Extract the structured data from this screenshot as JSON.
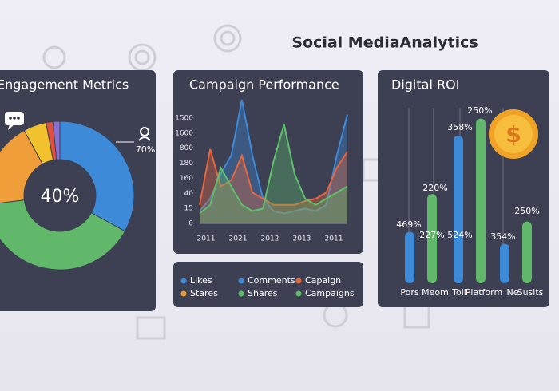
{
  "title": "Social MediaAnalytics",
  "chart_data": [
    {
      "type": "donut",
      "title": "Engagement Metrics",
      "center_label": "40%",
      "annotation": "70%",
      "categories": [
        null,
        null,
        null,
        null,
        null,
        null
      ],
      "values": [
        33,
        40,
        19,
        5,
        1.5,
        1.5
      ],
      "colors": [
        "#3d8ad9",
        "#62b86a",
        "#ef9d38",
        "#f2c12e",
        "#e0503f",
        "#8b6fd2"
      ]
    },
    {
      "type": "line",
      "title": "Campaign Performance",
      "y_labels": [
        "1500",
        "1600",
        "800",
        "180",
        "160",
        "40",
        "15",
        "0"
      ],
      "x_labels": [
        "2011",
        "2021",
        "2012",
        "2013",
        "2011"
      ],
      "ylim": [
        0,
        100
      ],
      "series": [
        {
          "color": "#3d8ad9",
          "values": [
            10,
            20,
            40,
            55,
            100,
            55,
            20,
            10,
            8,
            10,
            12,
            10,
            15,
            55,
            88
          ]
        },
        {
          "color": "#e8663c",
          "values": [
            15,
            60,
            30,
            35,
            55,
            25,
            20,
            15,
            15,
            15,
            18,
            20,
            25,
            45,
            58
          ]
        },
        {
          "color": "#5fc06a",
          "values": [
            8,
            15,
            45,
            30,
            15,
            10,
            12,
            50,
            80,
            40,
            20,
            15,
            20,
            25,
            30
          ]
        }
      ],
      "legend": [
        {
          "name": "Likes",
          "color": "#3d8ad9"
        },
        {
          "name": "Comments",
          "color": "#3d8ad9"
        },
        {
          "name": "Capaign",
          "color": "#e8663c"
        },
        {
          "name": "Stares",
          "color": "#ef9d38"
        },
        {
          "name": "Shares",
          "color": "#5fc06a"
        },
        {
          "name": "Campaigns",
          "color": "#5fc06a"
        }
      ]
    },
    {
      "type": "bar",
      "title": "Digital ROI",
      "categories": [
        null,
        null,
        null
      ],
      "x_labels": [
        "Pors",
        "Meom",
        "Toll",
        "Platform",
        "Ne",
        "Susits"
      ],
      "ylim": [
        0,
        100
      ],
      "series": [
        {
          "color": "#3d8ad9",
          "values": [
            30,
            86,
            23
          ]
        },
        {
          "color": "#62b86a",
          "values": [
            52,
            96,
            36
          ]
        }
      ],
      "annotations": [
        "469%",
        "220%",
        "227%",
        "358%",
        "250%",
        "524%",
        "354%",
        "250%"
      ]
    }
  ]
}
